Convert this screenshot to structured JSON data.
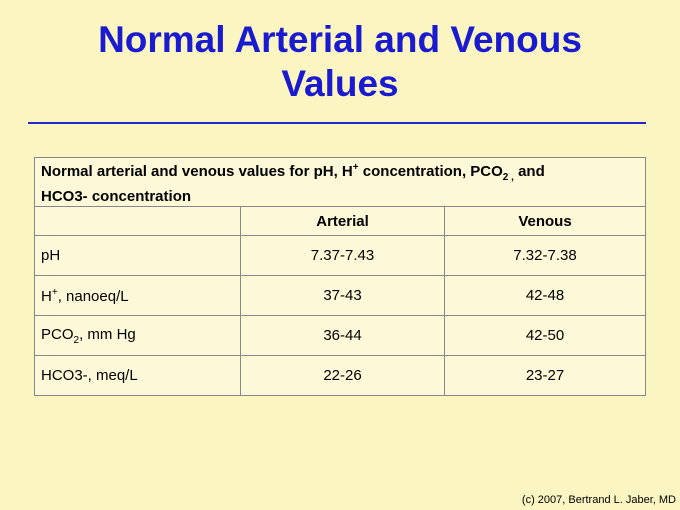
{
  "title": {
    "line1": "Normal Arterial and Venous",
    "line2": "Values"
  },
  "table": {
    "caption": {
      "part1": "Normal arterial and venous values for pH, H",
      "sup": "+",
      "part2": " concentration, PCO",
      "sub": "2 ,",
      "part3": " and",
      "line2": "HCO3- concentration"
    },
    "columns": {
      "param": "",
      "arterial": "Arterial",
      "venous": "Venous"
    },
    "rows": [
      {
        "label": "pH",
        "arterial": "7.37-7.43",
        "venous": "7.32-7.38"
      },
      {
        "label_pre": "H",
        "label_sup": "+",
        "label_post": ", nanoeq/L",
        "arterial": "37-43",
        "venous": "42-48"
      },
      {
        "label_pre": "PCO",
        "label_sub": "2",
        "label_post": ", mm Hg",
        "arterial": "36-44",
        "venous": "42-50"
      },
      {
        "label": "HCO3-, meq/L",
        "arterial": "22-26",
        "venous": "23-27"
      }
    ]
  },
  "credit": "(c) 2007, Bertrand L. Jaber, MD"
}
